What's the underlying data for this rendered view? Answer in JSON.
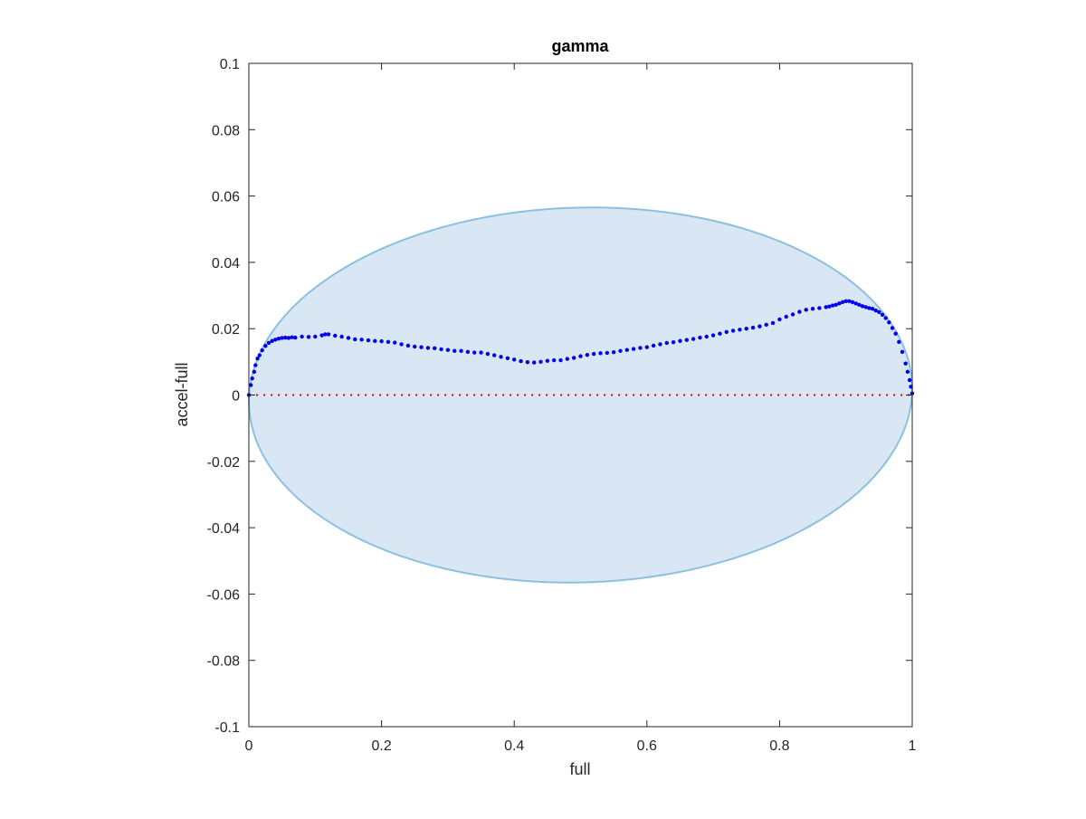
{
  "chart_data": {
    "type": "scatter",
    "title": "gamma",
    "xlabel": "full",
    "ylabel": "accel-full",
    "xlim": [
      0,
      1
    ],
    "ylim": [
      -0.1,
      0.1
    ],
    "x_ticks": [
      0,
      0.2,
      0.4,
      0.6,
      0.8,
      1
    ],
    "x_tick_labels": [
      "0",
      "0.2",
      "0.4",
      "0.6",
      "0.8",
      "1"
    ],
    "y_ticks": [
      -0.1,
      -0.08,
      -0.06,
      -0.04,
      -0.02,
      0,
      0.02,
      0.04,
      0.06,
      0.08,
      0.1
    ],
    "y_tick_labels": [
      "-0.1",
      "-0.08",
      "-0.06",
      "-0.04",
      "-0.02",
      "0",
      "0.02",
      "0.04",
      "0.06",
      "0.08",
      "0.1"
    ],
    "grid": false,
    "colors": {
      "points": "#0000ee",
      "ellipse_fill": "#d8e7f3",
      "ellipse_stroke": "#8cc0e0",
      "zero_line": "#ff0000",
      "axes": "#262626"
    },
    "ellipse": {
      "center": [
        0.5,
        0.0
      ],
      "x_semi_axis": 0.5,
      "y_semi_axis": 0.0565,
      "description_note": ""
    },
    "reference_line": {
      "y": 0,
      "style": "dotted"
    },
    "series": [
      {
        "x": [
          0.0,
          0.003,
          0.005,
          0.008,
          0.01,
          0.013,
          0.016,
          0.02,
          0.025,
          0.03,
          0.035,
          0.04,
          0.045,
          0.05,
          0.055,
          0.06,
          0.065,
          0.07,
          0.08,
          0.09,
          0.1,
          0.11,
          0.115,
          0.12,
          0.13,
          0.14,
          0.15,
          0.16,
          0.17,
          0.18,
          0.19,
          0.2,
          0.21,
          0.22,
          0.23,
          0.24,
          0.25,
          0.26,
          0.27,
          0.28,
          0.29,
          0.3,
          0.31,
          0.32,
          0.33,
          0.34,
          0.35,
          0.36,
          0.37,
          0.38,
          0.39,
          0.4,
          0.41,
          0.42,
          0.43,
          0.44,
          0.45,
          0.46,
          0.47,
          0.48,
          0.49,
          0.5,
          0.51,
          0.52,
          0.53,
          0.54,
          0.55,
          0.56,
          0.57,
          0.58,
          0.59,
          0.6,
          0.61,
          0.62,
          0.63,
          0.64,
          0.65,
          0.66,
          0.67,
          0.68,
          0.69,
          0.7,
          0.71,
          0.72,
          0.73,
          0.74,
          0.75,
          0.76,
          0.77,
          0.78,
          0.79,
          0.8,
          0.81,
          0.82,
          0.83,
          0.84,
          0.85,
          0.86,
          0.87,
          0.875,
          0.88,
          0.885,
          0.89,
          0.895,
          0.9,
          0.905,
          0.91,
          0.915,
          0.92,
          0.925,
          0.93,
          0.935,
          0.94,
          0.945,
          0.95,
          0.955,
          0.96,
          0.965,
          0.97,
          0.975,
          0.98,
          0.985,
          0.99,
          0.993,
          0.996,
          0.998,
          1.0
        ],
        "y": [
          0.0,
          0.003,
          0.005,
          0.007,
          0.009,
          0.011,
          0.012,
          0.0135,
          0.0148,
          0.0157,
          0.0163,
          0.0167,
          0.017,
          0.0172,
          0.0173,
          0.0172,
          0.0174,
          0.0173,
          0.0176,
          0.0175,
          0.0176,
          0.018,
          0.0183,
          0.0183,
          0.0179,
          0.0176,
          0.0172,
          0.0168,
          0.0167,
          0.0165,
          0.0163,
          0.0162,
          0.016,
          0.0158,
          0.0153,
          0.0149,
          0.0146,
          0.0144,
          0.0142,
          0.0141,
          0.0138,
          0.0136,
          0.0133,
          0.0133,
          0.013,
          0.0128,
          0.0128,
          0.0124,
          0.012,
          0.0115,
          0.0111,
          0.0107,
          0.0102,
          0.0099,
          0.0098,
          0.01,
          0.0103,
          0.0105,
          0.0105,
          0.0109,
          0.0112,
          0.0117,
          0.0121,
          0.0124,
          0.0126,
          0.0127,
          0.0129,
          0.0133,
          0.0136,
          0.0139,
          0.0142,
          0.0144,
          0.0149,
          0.0153,
          0.0157,
          0.0159,
          0.0163,
          0.0166,
          0.0169,
          0.0173,
          0.0176,
          0.018,
          0.0185,
          0.019,
          0.0194,
          0.0197,
          0.02,
          0.0203,
          0.0207,
          0.0212,
          0.0217,
          0.0228,
          0.0236,
          0.0243,
          0.0251,
          0.0257,
          0.026,
          0.0262,
          0.0265,
          0.0267,
          0.027,
          0.0272,
          0.0276,
          0.028,
          0.0283,
          0.0283,
          0.028,
          0.0276,
          0.0272,
          0.0268,
          0.0265,
          0.0262,
          0.026,
          0.0255,
          0.025,
          0.0242,
          0.0232,
          0.0219,
          0.0202,
          0.0185,
          0.016,
          0.013,
          0.0095,
          0.007,
          0.0045,
          0.0025,
          0.0005
        ]
      }
    ]
  }
}
